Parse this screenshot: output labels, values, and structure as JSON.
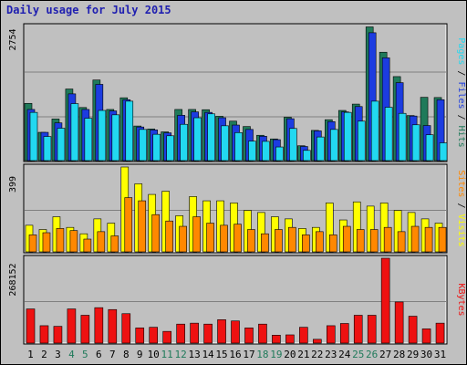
{
  "title": "Daily usage for July 2015",
  "colors": {
    "background": "#c0c0c0",
    "title": "#1f1fb0",
    "hits": "#1f7a5a",
    "files": "#1c3ce0",
    "pages": "#22d8f0",
    "visits": "#ffff00",
    "sites": "#ff8800",
    "kbytes": "#ee1111",
    "weekend_day_label": "#1f7a5a",
    "day_label": "#000000"
  },
  "chart_data": [
    {
      "type": "bar",
      "title": "Hits / Files / Pages",
      "ylabel_parts": [
        "Pages",
        "Files",
        "Hits"
      ],
      "ymax_label": "2754",
      "ylim": [
        0,
        2754
      ],
      "categories": [
        "1",
        "2",
        "3",
        "4",
        "5",
        "6",
        "7",
        "8",
        "9",
        "10",
        "11",
        "12",
        "13",
        "14",
        "15",
        "16",
        "17",
        "18",
        "19",
        "20",
        "21",
        "22",
        "23",
        "24",
        "25",
        "26",
        "27",
        "28",
        "29",
        "30",
        "31"
      ],
      "series": [
        {
          "name": "Hits",
          "values": [
            1175,
            580,
            855,
            1470,
            1090,
            1655,
            1050,
            1290,
            710,
            650,
            590,
            1050,
            1050,
            1045,
            910,
            810,
            700,
            520,
            445,
            890,
            305,
            620,
            840,
            1030,
            1160,
            2745,
            2225,
            1725,
            925,
            1300,
            1295
          ]
        },
        {
          "name": "Files",
          "values": [
            1050,
            580,
            775,
            1370,
            1050,
            1565,
            1020,
            1250,
            690,
            630,
            570,
            930,
            1000,
            990,
            880,
            730,
            640,
            500,
            430,
            860,
            290,
            610,
            800,
            1000,
            1110,
            2625,
            2110,
            1600,
            915,
            720,
            1250
          ]
        },
        {
          "name": "Pages",
          "values": [
            990,
            495,
            665,
            1170,
            870,
            1030,
            940,
            1220,
            640,
            540,
            510,
            745,
            880,
            960,
            715,
            575,
            400,
            395,
            280,
            660,
            210,
            485,
            640,
            990,
            810,
            1220,
            1095,
            970,
            735,
            530,
            365
          ]
        }
      ]
    },
    {
      "type": "bar",
      "title": "Visits / Sites",
      "ylabel_parts": [
        "Sites",
        "Visits"
      ],
      "ymax_label": "399",
      "ylim": [
        0,
        399
      ],
      "categories": [
        "1",
        "2",
        "3",
        "4",
        "5",
        "6",
        "7",
        "8",
        "9",
        "10",
        "11",
        "12",
        "13",
        "14",
        "15",
        "16",
        "17",
        "18",
        "19",
        "20",
        "21",
        "22",
        "23",
        "24",
        "25",
        "26",
        "27",
        "28",
        "29",
        "30",
        "31"
      ],
      "series": [
        {
          "name": "Visits",
          "values": [
            125,
            105,
            165,
            115,
            85,
            155,
            135,
            399,
            320,
            270,
            285,
            170,
            260,
            240,
            240,
            230,
            195,
            185,
            165,
            155,
            110,
            115,
            230,
            150,
            235,
            215,
            230,
            195,
            185,
            155,
            135
          ]
        },
        {
          "name": "Sites",
          "values": [
            80,
            90,
            110,
            100,
            60,
            95,
            75,
            255,
            240,
            175,
            145,
            120,
            165,
            135,
            125,
            130,
            105,
            85,
            105,
            115,
            80,
            95,
            80,
            120,
            105,
            105,
            115,
            95,
            120,
            115,
            115
          ]
        }
      ]
    },
    {
      "type": "bar",
      "title": "KBytes",
      "ylabel_parts": [
        "KBytes"
      ],
      "ymax_label": "268152",
      "ylim": [
        0,
        268152
      ],
      "categories": [
        "1",
        "2",
        "3",
        "4",
        "5",
        "6",
        "7",
        "8",
        "9",
        "10",
        "11",
        "12",
        "13",
        "14",
        "15",
        "16",
        "17",
        "18",
        "19",
        "20",
        "21",
        "22",
        "23",
        "24",
        "25",
        "26",
        "27",
        "28",
        "29",
        "30",
        "31"
      ],
      "series": [
        {
          "name": "KBytes",
          "values": [
            108000,
            55000,
            53000,
            108000,
            88000,
            112000,
            106000,
            93000,
            48000,
            50000,
            37000,
            60000,
            63000,
            60000,
            74000,
            70000,
            48000,
            60000,
            25000,
            26000,
            50000,
            12000,
            55000,
            62000,
            88000,
            88000,
            268152,
            130000,
            85000,
            45000,
            63000
          ]
        }
      ]
    }
  ],
  "weekend_days": [
    "4",
    "5",
    "11",
    "12",
    "18",
    "19",
    "25",
    "26"
  ]
}
